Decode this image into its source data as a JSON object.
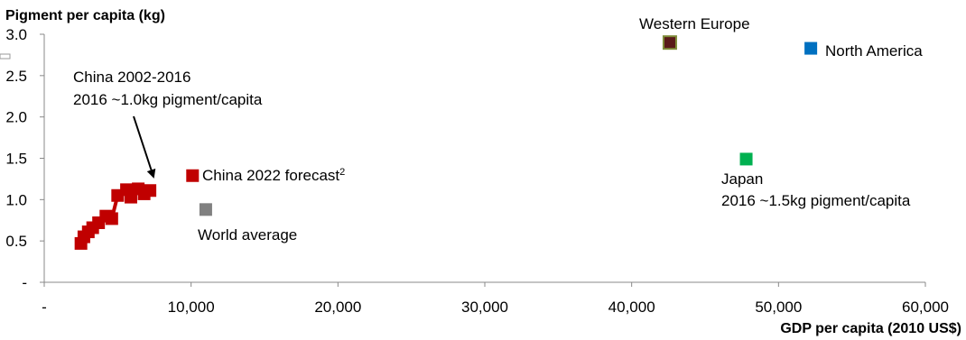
{
  "chart_data": {
    "type": "scatter",
    "title": "",
    "xlabel": "GDP per capita (2010 US$)",
    "ylabel": "Pigment per capita (kg)",
    "xlim": [
      0,
      60000
    ],
    "ylim": [
      0,
      3.0
    ],
    "x_ticks": [
      "-",
      "10,000",
      "20,000",
      "30,000",
      "40,000",
      "50,000",
      "60,000"
    ],
    "y_ticks": [
      "-",
      "0.5",
      "1.0",
      "1.5",
      "2.0",
      "2.5",
      "3.0"
    ],
    "grid": false,
    "series": [
      {
        "color": "#c00000",
        "connected": true,
        "points": [
          {
            "x": 2500,
            "y": 0.47
          },
          {
            "x": 2700,
            "y": 0.55
          },
          {
            "x": 3000,
            "y": 0.61
          },
          {
            "x": 3300,
            "y": 0.66
          },
          {
            "x": 3700,
            "y": 0.72
          },
          {
            "x": 4200,
            "y": 0.8
          },
          {
            "x": 4600,
            "y": 0.77
          },
          {
            "x": 5000,
            "y": 1.05
          },
          {
            "x": 5600,
            "y": 1.12
          },
          {
            "x": 5900,
            "y": 1.03
          },
          {
            "x": 6400,
            "y": 1.13
          },
          {
            "x": 6800,
            "y": 1.07
          },
          {
            "x": 7200,
            "y": 1.11
          }
        ]
      },
      {
        "color": "#c00000",
        "points": [
          {
            "x": 10100,
            "y": 1.29
          }
        ]
      },
      {
        "color": "#808080",
        "points": [
          {
            "x": 11000,
            "y": 0.88
          }
        ]
      },
      {
        "color": "#00b050",
        "points": [
          {
            "x": 47800,
            "y": 1.49
          }
        ]
      },
      {
        "color": "#5a1a1a",
        "border": "#7f8c3a",
        "points": [
          {
            "x": 42600,
            "y": 2.9
          }
        ]
      },
      {
        "color": "#0070c0",
        "points": [
          {
            "x": 52200,
            "y": 2.83
          }
        ]
      }
    ],
    "annotations": {
      "china_hist_line1": "China 2002-2016",
      "china_hist_line2": "2016 ~1.0kg pigment/capita",
      "china_forecast": "China 2022 forecast",
      "china_forecast_sup": "2",
      "world_average": "World average",
      "japan_line1": "Japan",
      "japan_line2": "2016 ~1.5kg pigment/capita",
      "western_europe": "Western Europe",
      "north_america": "North America"
    }
  }
}
